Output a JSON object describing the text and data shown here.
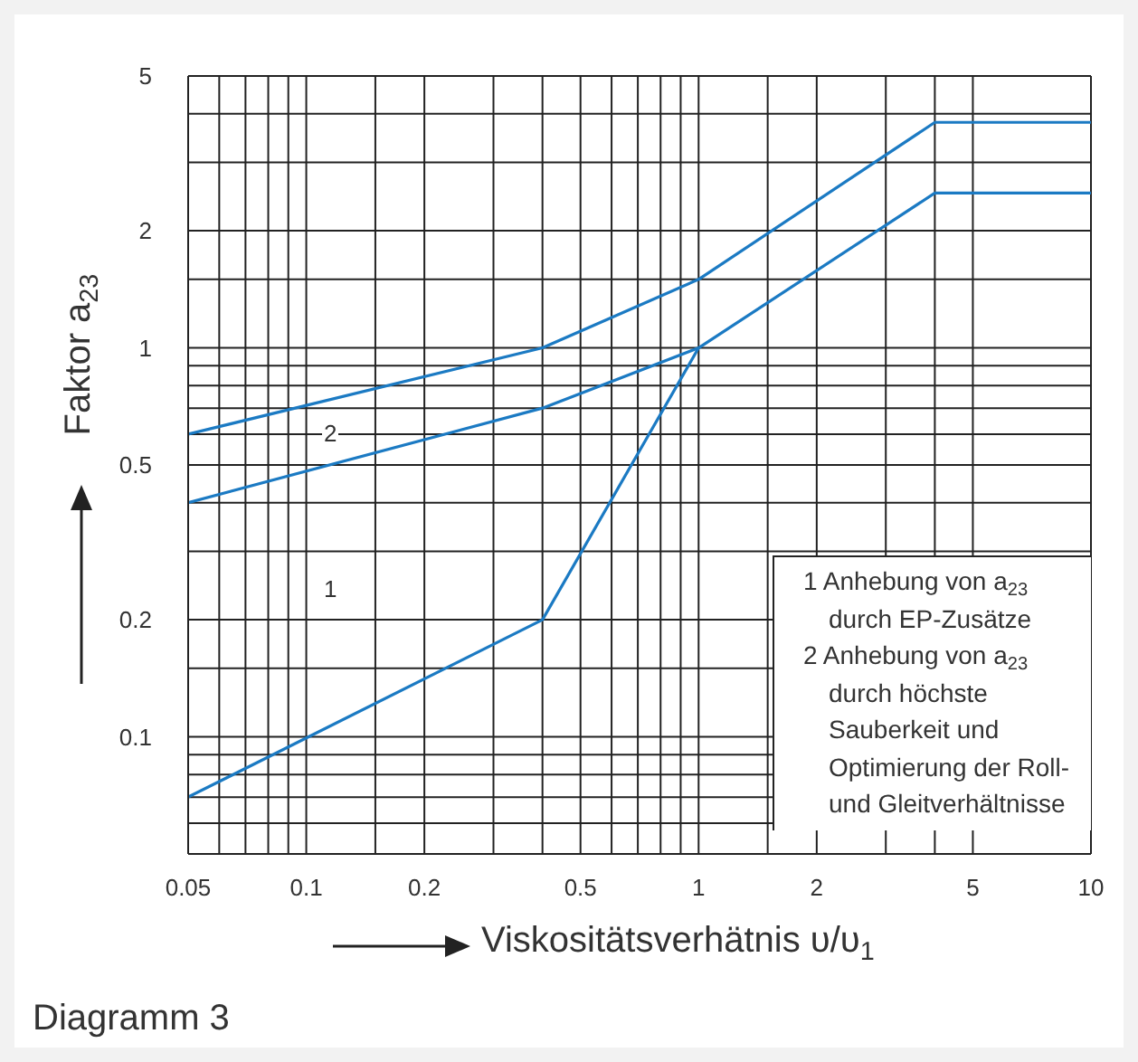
{
  "chart_data": {
    "type": "line",
    "xlabel": "Viskositätsverhätnis υ/υ$_{1}$",
    "ylabel": "Faktor a$_{23}$",
    "log": "xy",
    "grid": true,
    "marker": "none",
    "line_style": "solid",
    "xlim": [
      0.05,
      10
    ],
    "ylim": [
      0.05,
      5
    ],
    "xticks": [
      0.05,
      {
        "value": 0.06,
        "label": null
      },
      {
        "value": 0.07,
        "label": null
      },
      {
        "value": 0.08,
        "label": null
      },
      {
        "value": 0.09,
        "label": null
      },
      0.1,
      {
        "value": 0.15,
        "label": null
      },
      0.2,
      {
        "value": 0.3,
        "label": null
      },
      {
        "value": 0.4,
        "label": null
      },
      0.5,
      {
        "value": 0.6,
        "label": null
      },
      {
        "value": 0.7,
        "label": null
      },
      {
        "value": 0.8,
        "label": null
      },
      {
        "value": 0.9,
        "label": null
      },
      1,
      {
        "value": 1.5,
        "label": null
      },
      2,
      {
        "value": 3,
        "label": null
      },
      {
        "value": 4,
        "label": null
      },
      5,
      10
    ],
    "yticks": [
      {
        "value": 0.05,
        "label": null
      },
      {
        "value": 0.06,
        "label": null
      },
      {
        "value": 0.07,
        "label": null
      },
      {
        "value": 0.08,
        "label": null
      },
      {
        "value": 0.09,
        "label": null
      },
      0.1,
      {
        "value": 0.15,
        "label": null
      },
      0.2,
      {
        "value": 0.3,
        "label": null
      },
      {
        "value": 0.4,
        "label": null
      },
      0.5,
      {
        "value": 0.6,
        "label": null
      },
      {
        "value": 0.7,
        "label": null
      },
      {
        "value": 0.8,
        "label": null
      },
      {
        "value": 0.9,
        "label": null
      },
      1,
      {
        "value": 1.5,
        "label": null
      },
      2,
      {
        "value": 3,
        "label": null
      },
      {
        "value": 4,
        "label": null
      },
      5
    ],
    "series": [
      {
        "color": "#1b7ac3",
        "x": [
          0.05,
          0.4,
          1,
          4,
          10
        ],
        "values": [
          0.6,
          1.0,
          1.5,
          3.8,
          3.8
        ]
      },
      {
        "color": "#1b7ac3",
        "x": [
          0.05,
          0.4,
          1,
          4,
          10
        ],
        "values": [
          0.4,
          0.7,
          1.0,
          2.5,
          2.5
        ]
      },
      {
        "color": "#1b7ac3",
        "x": [
          0.05,
          0.4,
          1
        ],
        "values": [
          0.07,
          0.2,
          1.0
        ]
      }
    ],
    "annotations": [
      "1 Anhebung von a$_{23}$ durch EP-Zusätze",
      "2 Anhebung von a$_{23}$ durch höchste Sauberkeit und Optimierung der Roll- und Gleitverhältnisse",
      "2",
      "1",
      "Diagramm 3"
    ]
  }
}
